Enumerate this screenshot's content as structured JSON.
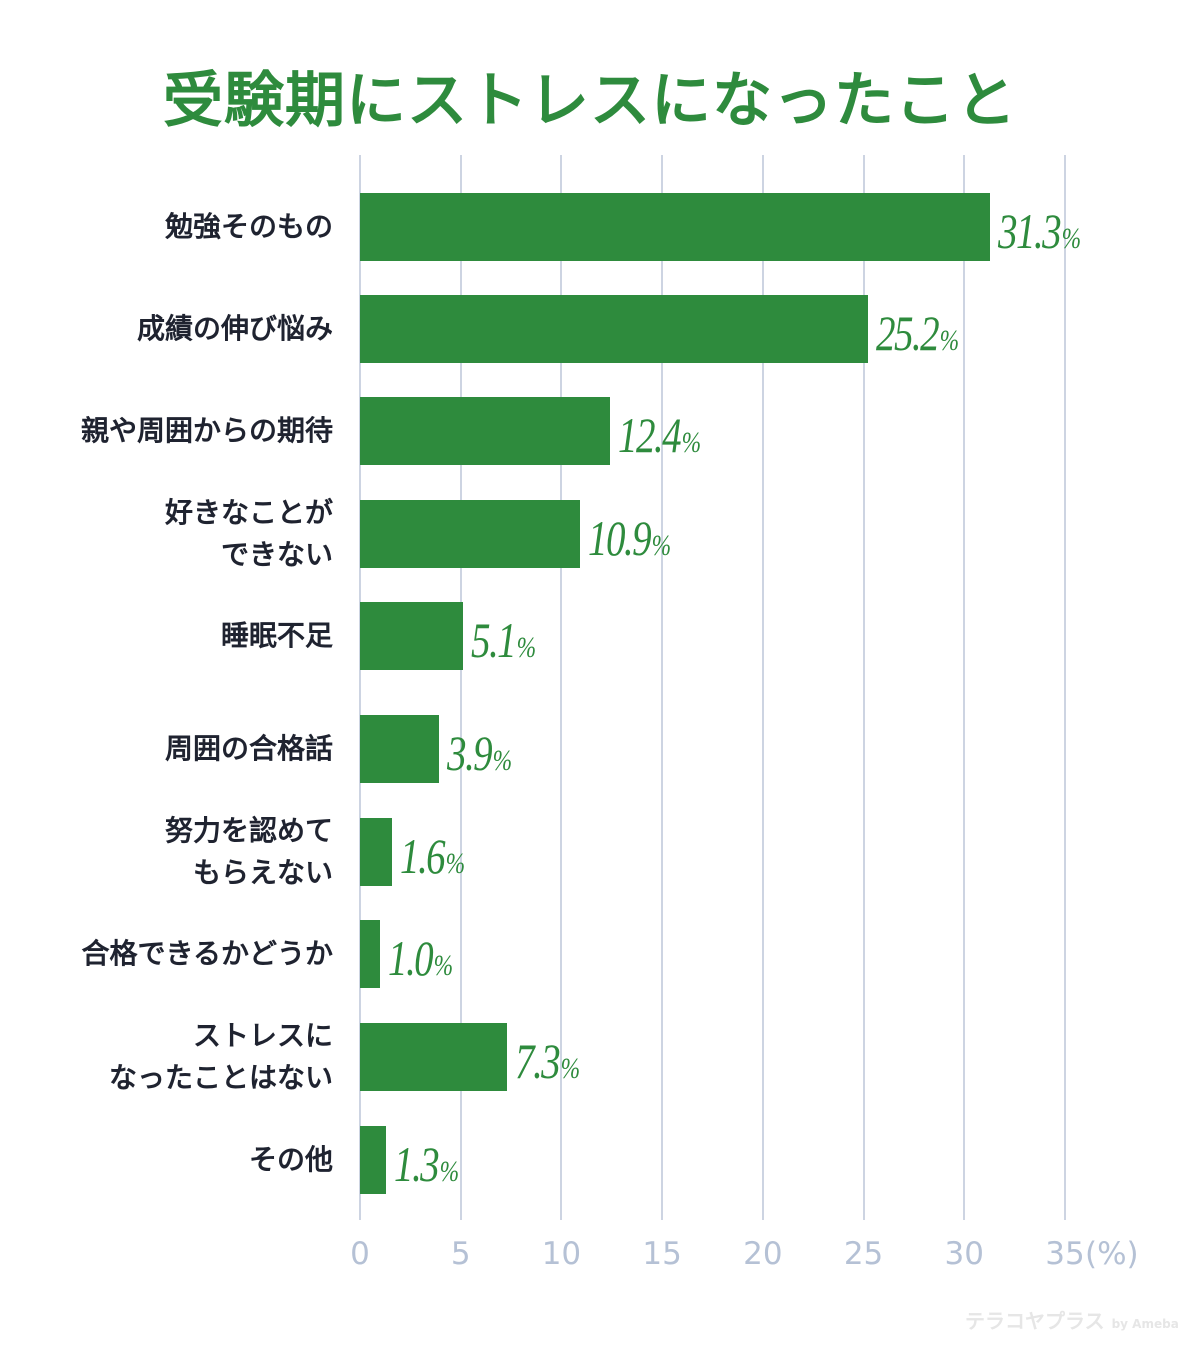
{
  "chart_data": {
    "type": "bar",
    "orientation": "horizontal",
    "title": "受験期にストレスになったこと",
    "categories": [
      "勉強そのもの",
      "成績の伸び悩み",
      "親や周囲からの期待",
      "好きなことが\nできない",
      "睡眠不足",
      "周囲の合格話",
      "努力を認めて\nもらえない",
      "合格できるかどうか",
      "ストレスに\nなったことはない",
      "その他"
    ],
    "values": [
      31.3,
      25.2,
      12.4,
      10.9,
      5.1,
      3.9,
      1.6,
      1.0,
      7.3,
      1.3
    ],
    "value_labels": [
      "31.3",
      "25.2",
      "12.4",
      "10.9",
      "5.1",
      "3.9",
      "1.6",
      "1.0",
      "7.3",
      "1.3"
    ],
    "value_suffix": "%",
    "xlim": [
      0,
      35
    ],
    "xticks": [
      "0",
      "5",
      "10",
      "15",
      "20",
      "25",
      "30",
      "35"
    ],
    "xlabel": "(%)",
    "grid": true,
    "bar_color": "#2e8b3d"
  },
  "watermark": {
    "main": "テラコヤプラス",
    "sub": "by Ameba"
  }
}
